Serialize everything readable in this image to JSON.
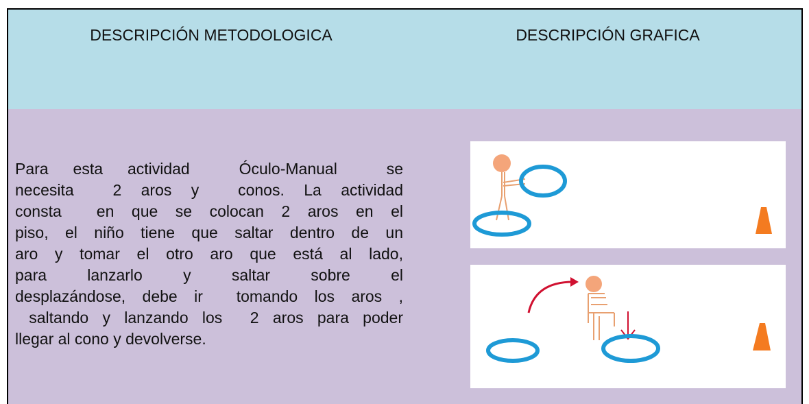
{
  "header": {
    "left": "DESCRIPCIÓN METODOLOGICA",
    "right": "DESCRIPCIÓN GRAFICA"
  },
  "body": {
    "lines": [
      "Para esta actividad  Óculo-Manual  se",
      "necesita  2 aros y  conos. La actividad",
      "consta  en que se colocan 2 aros en el",
      "piso, el niño tiene que saltar dentro de un",
      "aro y tomar el otro aro que está al lado,",
      "para  lanzarlo  y  saltar  sobre  el",
      "desplazándose, debe ir  tomando los aros ,",
      " saltando y lanzando los  2 aros para poder",
      "llegar al cono y devolverse."
    ]
  }
}
